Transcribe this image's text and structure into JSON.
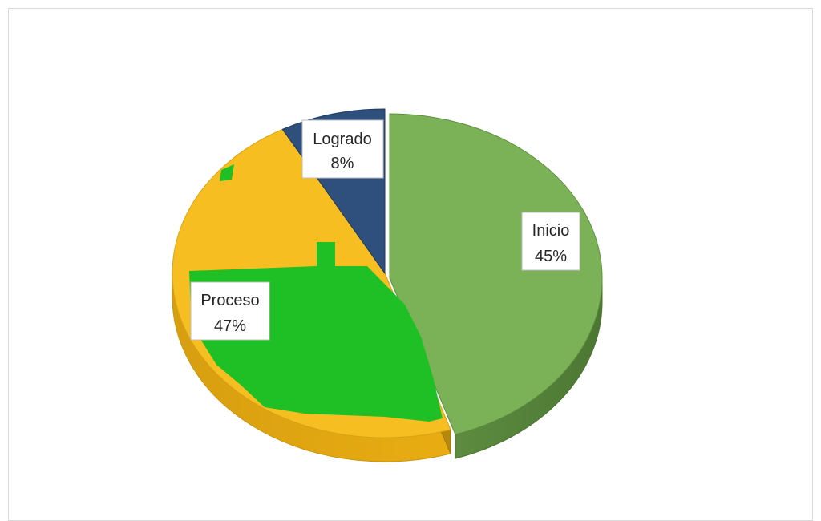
{
  "chart_data": {
    "type": "pie",
    "style": "3d",
    "title": "",
    "slices": [
      {
        "label": "Inicio",
        "value": 45,
        "display": "45%",
        "color": "#7cb257"
      },
      {
        "label": "Proceso",
        "value": 47,
        "display": "47%",
        "color": "#f6be20"
      },
      {
        "label": "Logrado",
        "value": 8,
        "display": "8%",
        "color": "#2f4f7c"
      }
    ],
    "legend": "none",
    "labels": "data labels with category and percentage"
  }
}
